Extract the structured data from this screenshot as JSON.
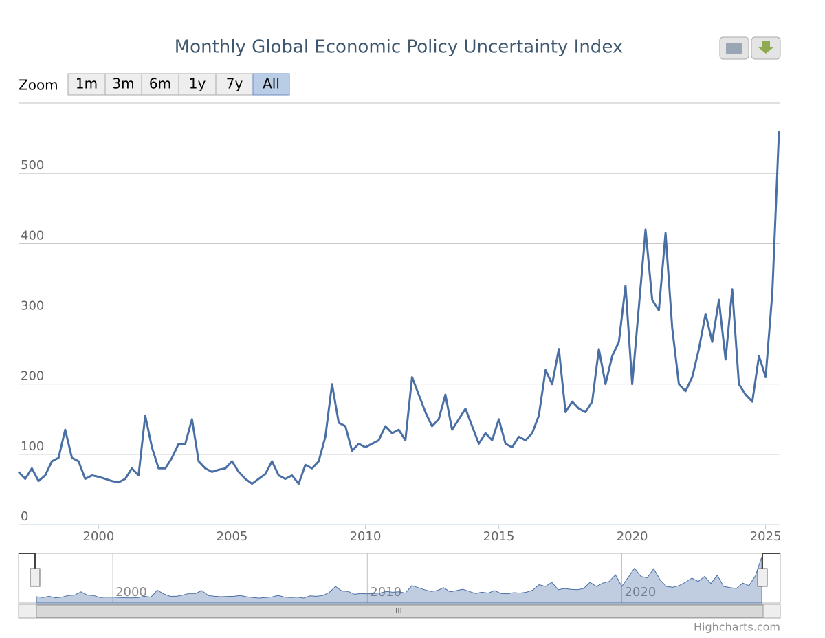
{
  "chart_data": {
    "type": "line",
    "title": "Monthly Global Economic Policy Uncertainty Index",
    "zoom_label": "Zoom",
    "range_buttons": [
      "1m",
      "3m",
      "6m",
      "1y",
      "7y",
      "All"
    ],
    "credits": "Highcharts.com",
    "color": "#4a6fa5",
    "x": [
      1997,
      1997.25,
      1997.5,
      1997.75,
      1998,
      1998.25,
      1998.5,
      1998.75,
      1999,
      1999.25,
      1999.5,
      1999.75,
      2000,
      2000.25,
      2000.5,
      2000.75,
      2001,
      2001.25,
      2001.5,
      2001.75,
      2002,
      2002.25,
      2002.5,
      2002.75,
      2003,
      2003.25,
      2003.5,
      2003.75,
      2004,
      2004.25,
      2004.5,
      2004.75,
      2005,
      2005.25,
      2005.5,
      2005.75,
      2006,
      2006.25,
      2006.5,
      2006.75,
      2007,
      2007.25,
      2007.5,
      2007.75,
      2008,
      2008.25,
      2008.5,
      2008.75,
      2009,
      2009.25,
      2009.5,
      2009.75,
      2010,
      2010.25,
      2010.5,
      2010.75,
      2011,
      2011.25,
      2011.5,
      2011.75,
      2012,
      2012.25,
      2012.5,
      2012.75,
      2013,
      2013.25,
      2013.5,
      2013.75,
      2014,
      2014.25,
      2014.5,
      2014.75,
      2015,
      2015.25,
      2015.5,
      2015.75,
      2016,
      2016.25,
      2016.5,
      2016.75,
      2017,
      2017.25,
      2017.5,
      2017.75,
      2018,
      2018.25,
      2018.5,
      2018.75,
      2019,
      2019.25,
      2019.5,
      2019.75,
      2020,
      2020.25,
      2020.5,
      2020.75,
      2021,
      2021.25,
      2021.5,
      2021.75,
      2022,
      2022.25,
      2022.5,
      2022.75,
      2023,
      2023.25,
      2023.5,
      2023.75,
      2024,
      2024.25,
      2024.5,
      2024.75,
      2025,
      2025.25,
      2025.5
    ],
    "values": [
      75,
      65,
      80,
      62,
      70,
      90,
      95,
      135,
      95,
      90,
      65,
      70,
      68,
      65,
      62,
      60,
      65,
      80,
      70,
      155,
      110,
      80,
      80,
      95,
      115,
      115,
      150,
      90,
      80,
      75,
      78,
      80,
      90,
      75,
      65,
      58,
      65,
      72,
      90,
      70,
      65,
      70,
      58,
      85,
      80,
      90,
      125,
      200,
      145,
      140,
      105,
      115,
      110,
      115,
      120,
      140,
      130,
      135,
      120,
      210,
      185,
      160,
      140,
      150,
      185,
      135,
      150,
      165,
      140,
      115,
      130,
      120,
      150,
      115,
      110,
      125,
      120,
      130,
      155,
      220,
      200,
      250,
      160,
      175,
      165,
      160,
      175,
      250,
      200,
      240,
      260,
      340,
      200,
      310,
      420,
      320,
      305,
      415,
      280,
      200,
      190,
      210,
      250,
      300,
      260,
      320,
      235,
      335,
      200,
      185,
      175,
      240,
      210,
      330,
      560
    ],
    "xlim": [
      1997,
      2025.55
    ],
    "xticks": [
      2000,
      2005,
      2010,
      2015,
      2020,
      2025
    ],
    "ylim": [
      0,
      600
    ],
    "yticks": [
      0,
      100,
      200,
      300,
      400,
      500
    ],
    "navigator_ticks": [
      2000,
      2010,
      2020
    ],
    "grid": true
  }
}
